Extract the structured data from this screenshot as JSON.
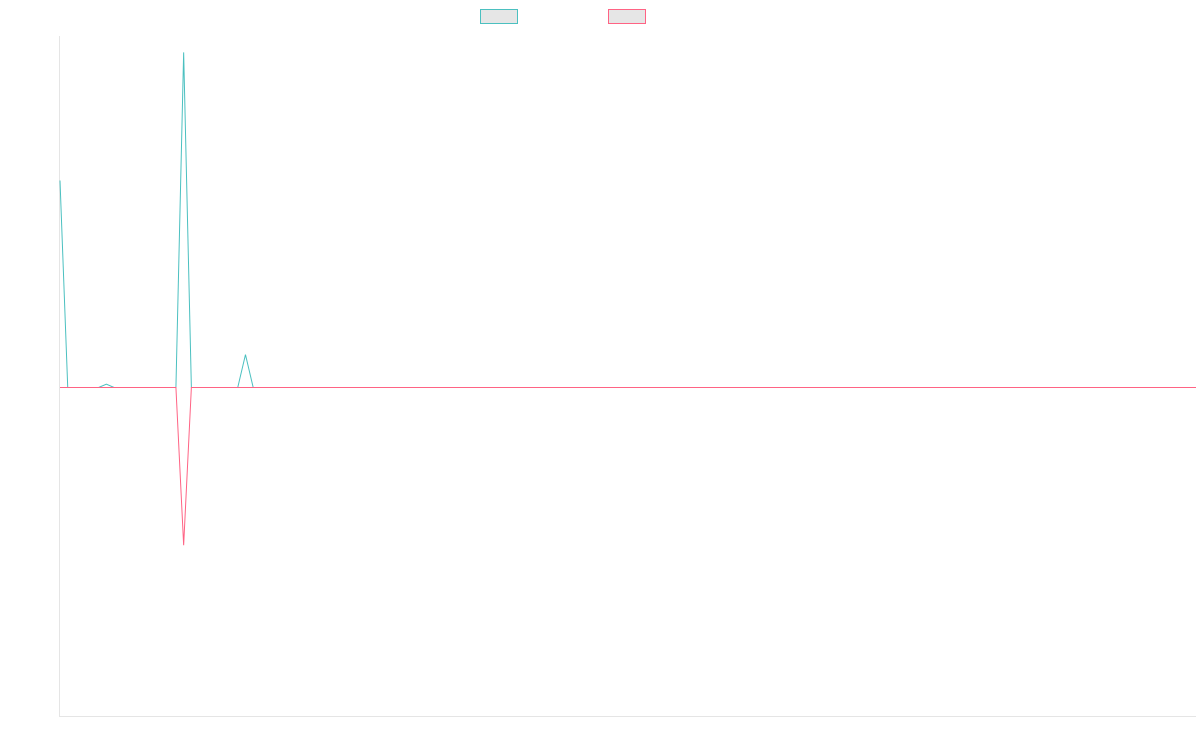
{
  "chart_data": {
    "type": "line",
    "title": "",
    "xlabel": "",
    "ylabel": "",
    "grid": false,
    "legend_position": "top-center",
    "xlim": [
      0,
      147
    ],
    "ylim": [
      -1,
      1.07
    ],
    "series": [
      {
        "color": "#4bc0c0",
        "x": [
          0,
          1,
          2,
          3,
          4,
          5,
          6,
          7,
          8,
          9,
          10,
          11,
          12,
          13,
          14,
          15,
          16,
          17,
          18,
          19,
          20,
          21,
          22,
          23,
          24,
          25,
          26,
          27,
          28,
          29,
          30,
          31,
          32,
          33,
          34,
          35,
          36,
          37,
          38,
          39,
          40,
          41,
          42,
          43,
          44,
          45,
          46,
          47,
          48,
          49,
          50,
          51,
          52,
          53,
          54,
          55,
          56,
          57,
          58,
          59,
          60,
          61,
          62,
          63,
          64,
          65,
          66,
          67,
          68,
          69,
          70,
          71,
          72,
          73,
          74,
          75,
          76,
          77,
          78,
          79,
          80,
          81,
          82,
          83,
          84,
          85,
          86,
          87,
          88,
          89,
          90,
          91,
          92,
          93,
          94,
          95,
          96,
          97,
          98,
          99,
          100,
          101,
          102,
          103,
          104,
          105,
          106,
          107,
          108,
          109,
          110,
          111,
          112,
          113,
          114,
          115,
          116,
          117,
          118,
          119,
          120,
          121,
          122,
          123,
          124,
          125,
          126,
          127,
          128,
          129,
          130,
          131,
          132,
          133,
          134,
          135,
          136,
          137,
          138,
          139,
          140,
          141,
          142,
          143,
          144,
          145,
          146,
          147
        ],
        "values": [
          0.63,
          0.0,
          0.0,
          0.0,
          0.0,
          0.0,
          0.01,
          0.0,
          0.0,
          0.0,
          0.0,
          0.0,
          0.0,
          0.0,
          0.0,
          0.0,
          1.02,
          0.0,
          0.0,
          0.0,
          0.0,
          0.0,
          0.0,
          0.0,
          0.1,
          0.0,
          0.0,
          0.0,
          0.0,
          0.0,
          0.0,
          0.0,
          0.0,
          0.0,
          0.0,
          0.0,
          0.0,
          0.0,
          0.0,
          0.0,
          0.0,
          0.0,
          0.0,
          0.0,
          0.0,
          0.0,
          0.0,
          0.0,
          0.0,
          0.0,
          0.0,
          0.0,
          0.0,
          0.0,
          0.0,
          0.0,
          0.0,
          0.0,
          0.0,
          0.0,
          0.0,
          0.0,
          0.0,
          0.0,
          0.0,
          0.0,
          0.0,
          0.0,
          0.0,
          0.0,
          0.0,
          0.0,
          0.0,
          0.0,
          0.0,
          0.0,
          0.0,
          0.0,
          0.0,
          0.0,
          0.0,
          0.0,
          0.0,
          0.0,
          0.0,
          0.0,
          0.0,
          0.0,
          0.0,
          0.0,
          0.0,
          0.0,
          0.0,
          0.0,
          0.0,
          0.0,
          0.0,
          0.0,
          0.0,
          0.0,
          0.0,
          0.0,
          0.0,
          0.0,
          0.0,
          0.0,
          0.0,
          0.0,
          0.0,
          0.0,
          0.0,
          0.0,
          0.0,
          0.0,
          0.0,
          0.0,
          0.0,
          0.0,
          0.0,
          0.0,
          0.0,
          0.0,
          0.0,
          0.0,
          0.0,
          0.0,
          0.0,
          0.0,
          0.0,
          0.0,
          0.0,
          0.0,
          0.0,
          0.0,
          0.0,
          0.0,
          0.0,
          0.0,
          0.0,
          0.0,
          0.0,
          0.0,
          0.0,
          0.0,
          0.0,
          0.0,
          0.0,
          0.0
        ]
      },
      {
        "color": "#ff6384",
        "x": [
          0,
          1,
          2,
          3,
          4,
          5,
          6,
          7,
          8,
          9,
          10,
          11,
          12,
          13,
          14,
          15,
          16,
          17,
          18,
          19,
          20,
          21,
          22,
          23,
          24,
          25,
          26,
          27,
          28,
          29,
          30,
          31,
          32,
          33,
          34,
          35,
          36,
          37,
          38,
          39,
          40,
          41,
          42,
          43,
          44,
          45,
          46,
          47,
          48,
          49,
          50,
          51,
          52,
          53,
          54,
          55,
          56,
          57,
          58,
          59,
          60,
          61,
          62,
          63,
          64,
          65,
          66,
          67,
          68,
          69,
          70,
          71,
          72,
          73,
          74,
          75,
          76,
          77,
          78,
          79,
          80,
          81,
          82,
          83,
          84,
          85,
          86,
          87,
          88,
          89,
          90,
          91,
          92,
          93,
          94,
          95,
          96,
          97,
          98,
          99,
          100,
          101,
          102,
          103,
          104,
          105,
          106,
          107,
          108,
          109,
          110,
          111,
          112,
          113,
          114,
          115,
          116,
          117,
          118,
          119,
          120,
          121,
          122,
          123,
          124,
          125,
          126,
          127,
          128,
          129,
          130,
          131,
          132,
          133,
          134,
          135,
          136,
          137,
          138,
          139,
          140,
          141,
          142,
          143,
          144,
          145,
          146,
          147
        ],
        "values": [
          0.0,
          0.0,
          0.0,
          0.0,
          0.0,
          0.0,
          0.0,
          0.0,
          0.0,
          0.0,
          0.0,
          0.0,
          0.0,
          0.0,
          0.0,
          0.0,
          -0.48,
          0.0,
          0.0,
          0.0,
          0.0,
          0.0,
          0.0,
          0.0,
          0.0,
          0.0,
          0.0,
          0.0,
          0.0,
          0.0,
          0.0,
          0.0,
          0.0,
          0.0,
          0.0,
          0.0,
          0.0,
          0.0,
          0.0,
          0.0,
          0.0,
          0.0,
          0.0,
          0.0,
          0.0,
          0.0,
          0.0,
          0.0,
          0.0,
          0.0,
          0.0,
          0.0,
          0.0,
          0.0,
          0.0,
          0.0,
          0.0,
          0.0,
          0.0,
          0.0,
          0.0,
          0.0,
          0.0,
          0.0,
          0.0,
          0.0,
          0.0,
          0.0,
          0.0,
          0.0,
          0.0,
          0.0,
          0.0,
          0.0,
          0.0,
          0.0,
          0.0,
          0.0,
          0.0,
          0.0,
          0.0,
          0.0,
          0.0,
          0.0,
          0.0,
          0.0,
          0.0,
          0.0,
          0.0,
          0.0,
          0.0,
          0.0,
          0.0,
          0.0,
          0.0,
          0.0,
          0.0,
          0.0,
          0.0,
          0.0,
          0.0,
          0.0,
          0.0,
          0.0,
          0.0,
          0.0,
          0.0,
          0.0,
          0.0,
          0.0,
          0.0,
          0.0,
          0.0,
          0.0,
          0.0,
          0.0,
          0.0,
          0.0,
          0.0,
          0.0,
          0.0,
          0.0,
          0.0,
          0.0,
          0.0,
          0.0,
          0.0,
          0.0,
          0.0,
          0.0,
          0.0,
          0.0,
          0.0,
          0.0,
          0.0,
          0.0,
          0.0,
          0.0,
          0.0,
          0.0,
          0.0,
          0.0,
          0.0,
          0.0,
          0.0,
          0.0,
          0.0,
          0.0
        ]
      }
    ]
  }
}
